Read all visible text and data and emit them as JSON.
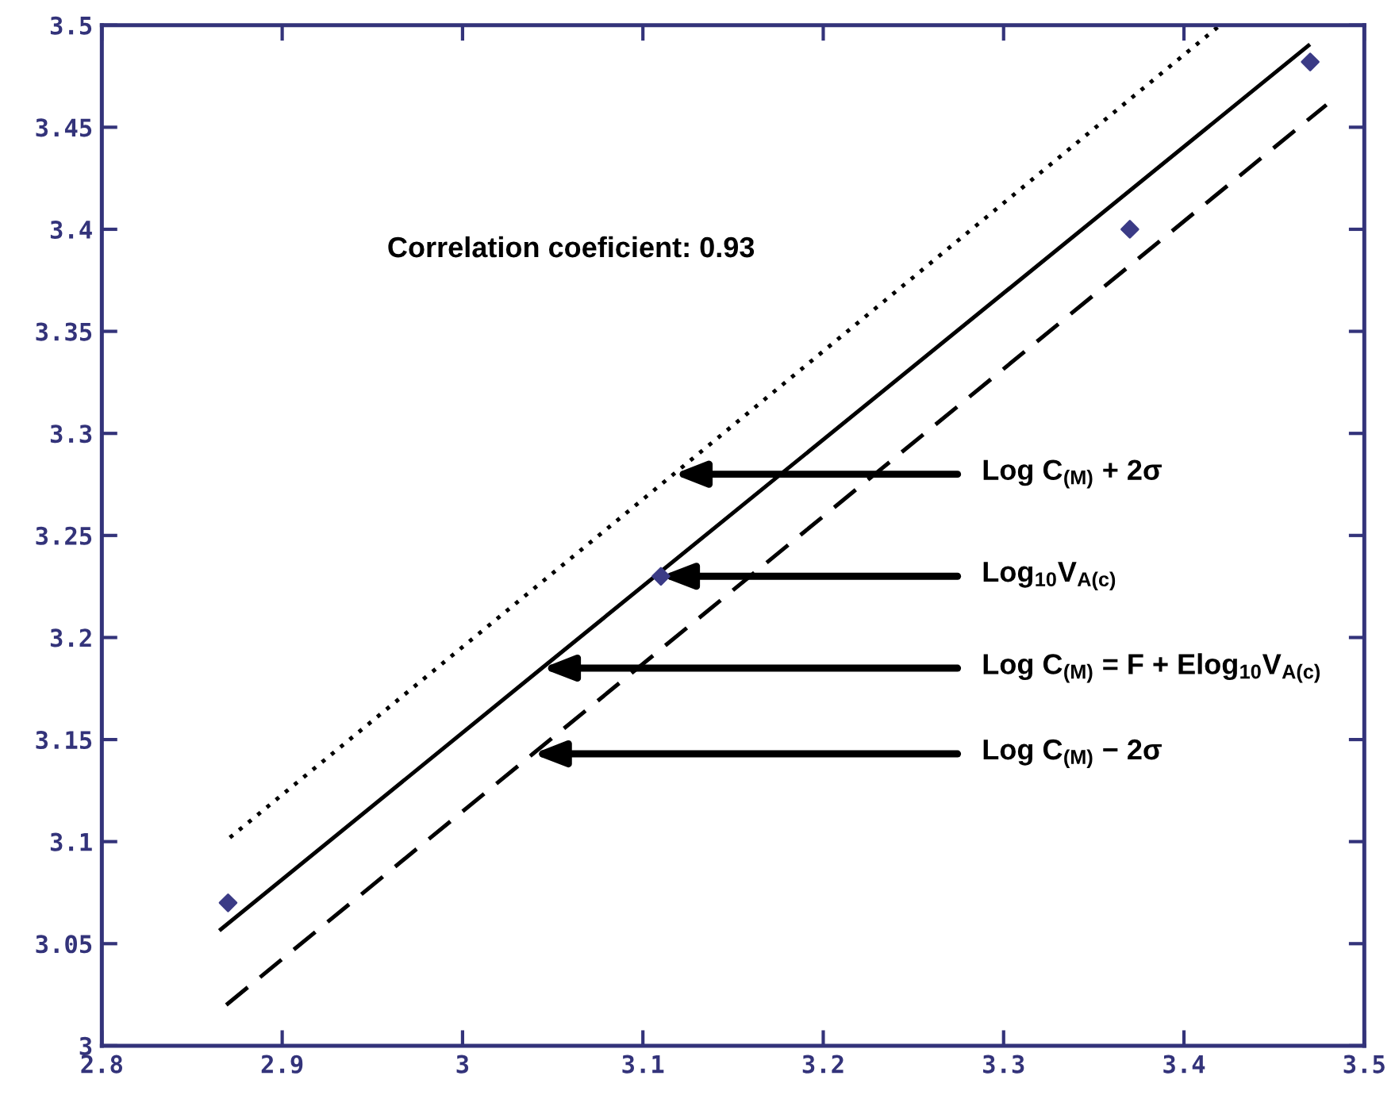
{
  "chart_data": {
    "type": "scatter",
    "xlim": [
      2.8,
      3.5
    ],
    "ylim": [
      3,
      3.5
    ],
    "xticks": [
      2.8,
      2.9,
      3,
      3.1,
      3.2,
      3.3,
      3.4,
      3.5
    ],
    "yticks": [
      3,
      3.05,
      3.1,
      3.15,
      3.2,
      3.25,
      3.3,
      3.35,
      3.4,
      3.45,
      3.5
    ],
    "series": [
      {
        "type": "line",
        "x": [
          2.871,
          3.117,
          3.42
        ],
        "values": [
          3.102,
          3.28,
          3.5
        ],
        "color": "#000000",
        "line_style": "dotted"
      },
      {
        "type": "line",
        "x": [
          2.866,
          3.044,
          3.469
        ],
        "values": [
          3.057,
          3.185,
          3.49
        ],
        "color": "#000000",
        "line_style": "solid"
      },
      {
        "type": "line",
        "x": [
          2.869,
          3.039,
          3.479
        ],
        "values": [
          3.02,
          3.143,
          3.461
        ],
        "color": "#000000",
        "line_style": "dashed"
      },
      {
        "x": [
          2.87,
          3.11,
          3.37,
          3.47
        ],
        "values": [
          3.07,
          3.23,
          3.4,
          3.482
        ],
        "color": "#3b3b86",
        "marker": "diamond"
      }
    ],
    "annotations": [
      "Correlation coeficient: 0.93",
      {
        "text": "Log C$_{(M)}$ + 2σ",
        "x": 3.117,
        "y": 3.28
      },
      {
        "text": "Log$_{10}$V$_{A(c)}$",
        "x": 3.11,
        "y": 3.23
      },
      {
        "text": "Log C$_{(M)}$ = F + Elog$_{10}$V$_{A(c)}$",
        "x": 3.044,
        "y": 3.185
      },
      {
        "text": "Log C$_{(M)}$ − 2σ",
        "x": 3.039,
        "y": 3.143
      }
    ]
  }
}
